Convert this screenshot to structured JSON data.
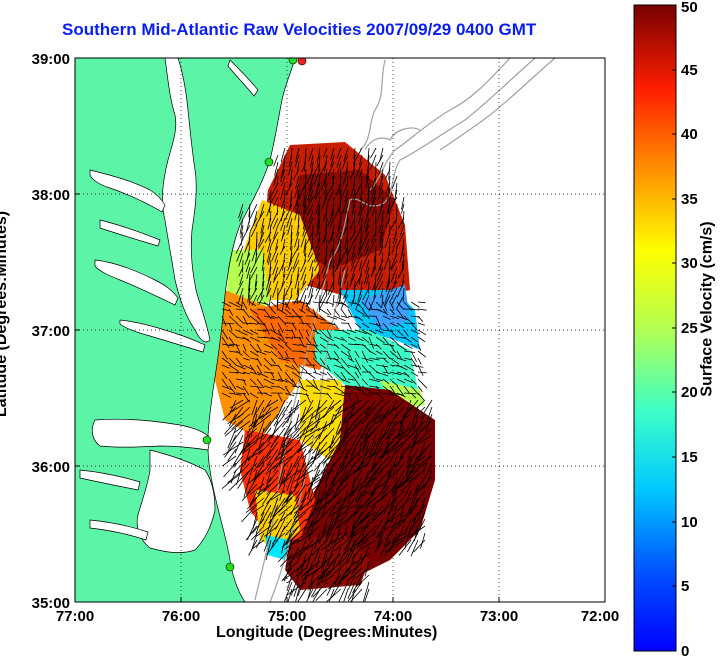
{
  "title": "Southern Mid-Atlantic Raw Velocities 2007/09/29 0400 GMT",
  "xlabel": "Longitude (Degrees:Minutes)",
  "ylabel": "Latitude (Degrees:Minutes)",
  "colorbar_label": "Surface Velocity (cm/s)",
  "x_ticks": [
    "77:00",
    "76:00",
    "75:00",
    "74:00",
    "73:00",
    "72:00"
  ],
  "y_ticks": [
    "39:00",
    "38:00",
    "37:00",
    "36:00",
    "35:00"
  ],
  "colorbar_ticks": [
    "0",
    "5",
    "10",
    "15",
    "20",
    "25",
    "30",
    "35",
    "40",
    "45",
    "50"
  ],
  "colors": {
    "land": "#5cf5a8",
    "title": "#0a1ef0",
    "site_marker": "#22dd22",
    "site_marker_alt": "#ee2222",
    "vector": "#000000",
    "bathymetry": "#a0a0a0"
  }
}
